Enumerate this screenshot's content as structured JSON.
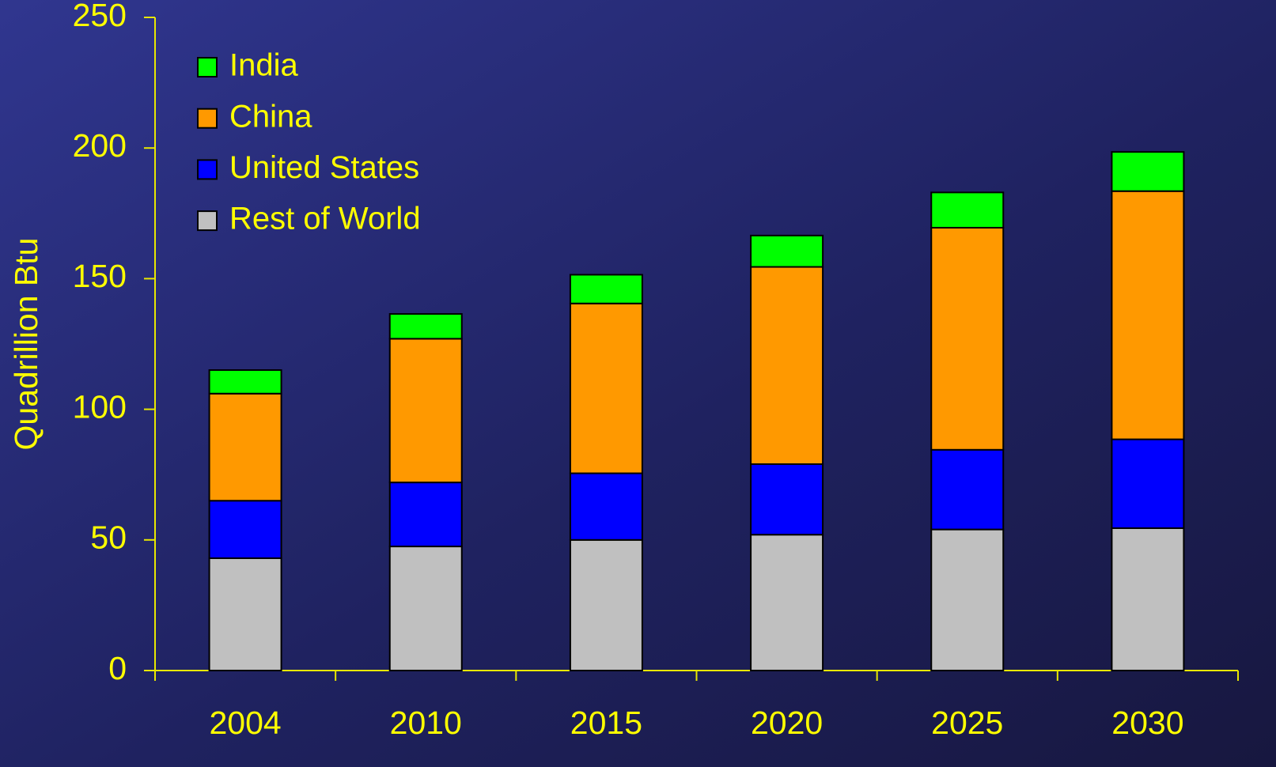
{
  "chart_data": {
    "type": "bar",
    "stacked": true,
    "y_label": "Quadrillion Btu",
    "categories": [
      "2004",
      "2010",
      "2015",
      "2020",
      "2025",
      "2030"
    ],
    "series": [
      {
        "name": "Rest of World",
        "color": "#c0c0c0",
        "values": [
          43,
          47.5,
          50,
          52,
          54,
          54.5
        ]
      },
      {
        "name": "United States",
        "color": "#0000ff",
        "values": [
          22,
          24.5,
          25.5,
          27,
          30.5,
          34
        ]
      },
      {
        "name": "China",
        "color": "#ff9900",
        "values": [
          41,
          55,
          65,
          75.5,
          85,
          95
        ]
      },
      {
        "name": "India",
        "color": "#00ff00",
        "values": [
          9,
          9.5,
          11,
          12,
          13.5,
          15
        ]
      }
    ],
    "ylim": [
      0,
      250
    ],
    "yticks": [
      0,
      50,
      100,
      150,
      200,
      250
    ],
    "legend": "upper-left",
    "grid": false
  }
}
